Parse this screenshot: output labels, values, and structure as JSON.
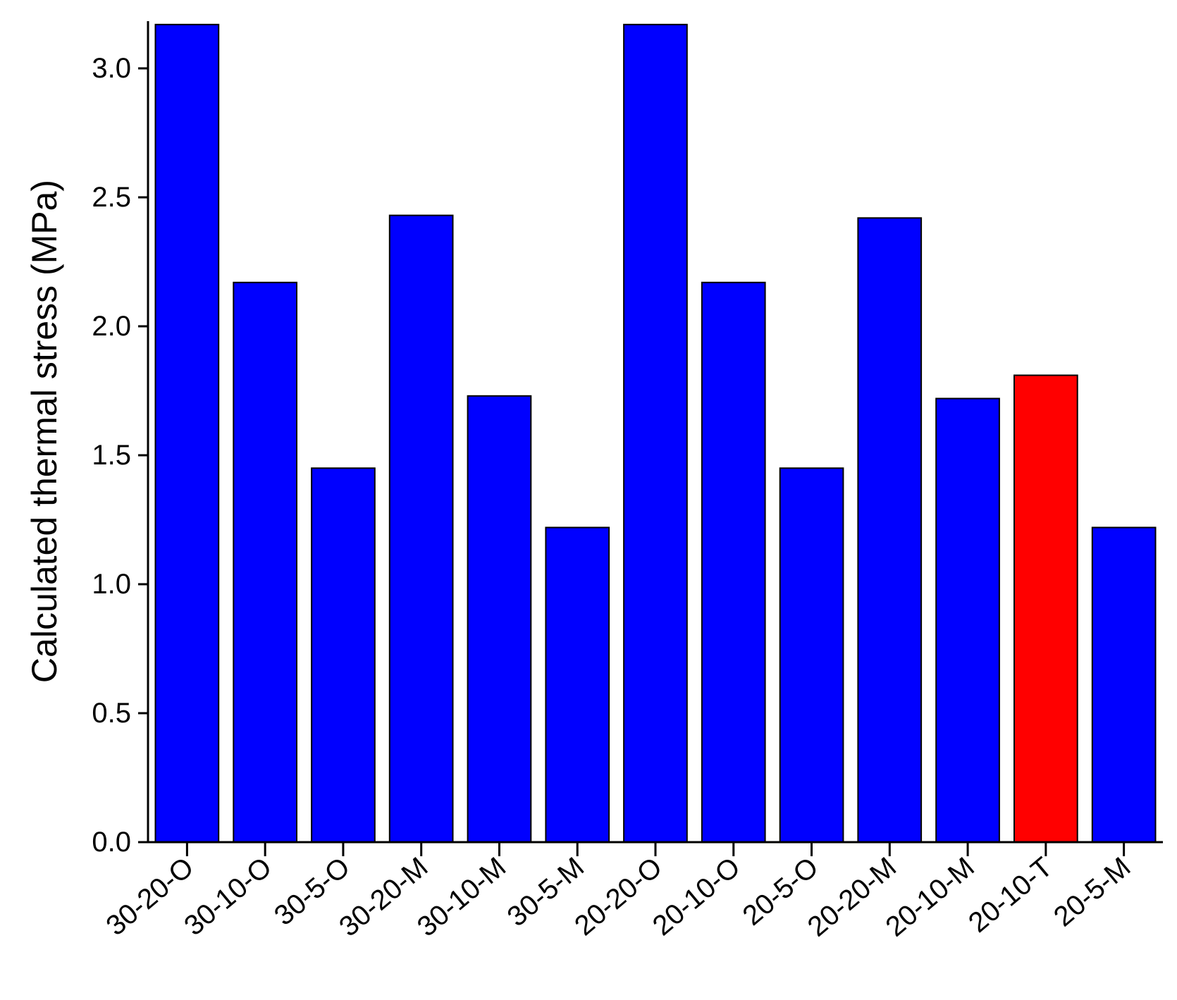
{
  "chart_data": {
    "type": "bar",
    "title": "",
    "xlabel": "",
    "ylabel": "Calculated thermal stress (MPa)",
    "ylim": [
      0,
      3.2
    ],
    "yticks": [
      "0.0",
      "0.5",
      "1.0",
      "1.5",
      "2.0",
      "2.5",
      "3.0"
    ],
    "categories": [
      "30-20-O",
      "30-10-O",
      "30-5-O",
      "30-20-M",
      "30-10-M",
      "30-5-M",
      "20-20-O",
      "20-10-O",
      "20-5-O",
      "20-20-M",
      "20-10-M",
      "20-10-T",
      "20-5-M"
    ],
    "values": [
      3.17,
      2.17,
      1.45,
      2.43,
      1.73,
      1.22,
      3.17,
      2.17,
      1.45,
      2.42,
      1.72,
      1.81,
      1.22
    ],
    "colors": [
      "#0000ff",
      "#0000ff",
      "#0000ff",
      "#0000ff",
      "#0000ff",
      "#0000ff",
      "#0000ff",
      "#0000ff",
      "#0000ff",
      "#0000ff",
      "#0000ff",
      "#ff0000",
      "#0000ff"
    ],
    "grid": false,
    "legend": "none"
  }
}
